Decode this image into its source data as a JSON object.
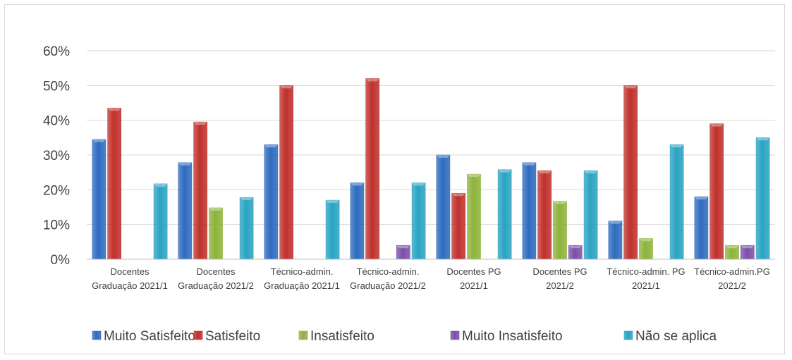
{
  "chart_data": {
    "type": "bar",
    "title": "",
    "xlabel": "",
    "ylabel": "",
    "ylim": [
      0,
      0.6
    ],
    "yticks": [
      "0%",
      "10%",
      "20%",
      "30%",
      "40%",
      "50%",
      "60%"
    ],
    "grid": true,
    "legend_position": "bottom",
    "categories": [
      [
        "Docentes",
        "Graduação 2021/1"
      ],
      [
        "Docentes",
        "Graduação 2021/2"
      ],
      [
        "Técnico-admin.",
        "Graduação 2021/1"
      ],
      [
        "Técnico-admin.",
        "Graduação 2021/2"
      ],
      [
        "Docentes PG",
        "2021/1"
      ],
      [
        "Docentes PG",
        "2021/2"
      ],
      [
        "Técnico-admin. PG",
        "2021/1"
      ],
      [
        "Técnico-admin.PG",
        "2021/2"
      ]
    ],
    "series": [
      {
        "name": "Muito Satisfeito",
        "color": "#2f6bbf",
        "values": [
          0.345,
          0.278,
          0.33,
          0.22,
          0.3,
          0.278,
          0.11,
          0.18
        ]
      },
      {
        "name": "Satisfeito",
        "color": "#c0302b",
        "values": [
          0.435,
          0.395,
          0.5,
          0.52,
          0.19,
          0.255,
          0.5,
          0.39
        ]
      },
      {
        "name": "Insatisfeito",
        "color": "#8db33a",
        "values": [
          0,
          0.148,
          0,
          0,
          0.245,
          0.167,
          0.06,
          0.04
        ]
      },
      {
        "name": "Muito Insatisfeito",
        "color": "#7b4fa6",
        "values": [
          0,
          0,
          0,
          0.04,
          0,
          0.04,
          0,
          0.04
        ]
      },
      {
        "name": "Não se aplica",
        "color": "#2aa3c2",
        "values": [
          0.217,
          0.178,
          0.17,
          0.22,
          0.258,
          0.255,
          0.33,
          0.35
        ]
      }
    ]
  }
}
